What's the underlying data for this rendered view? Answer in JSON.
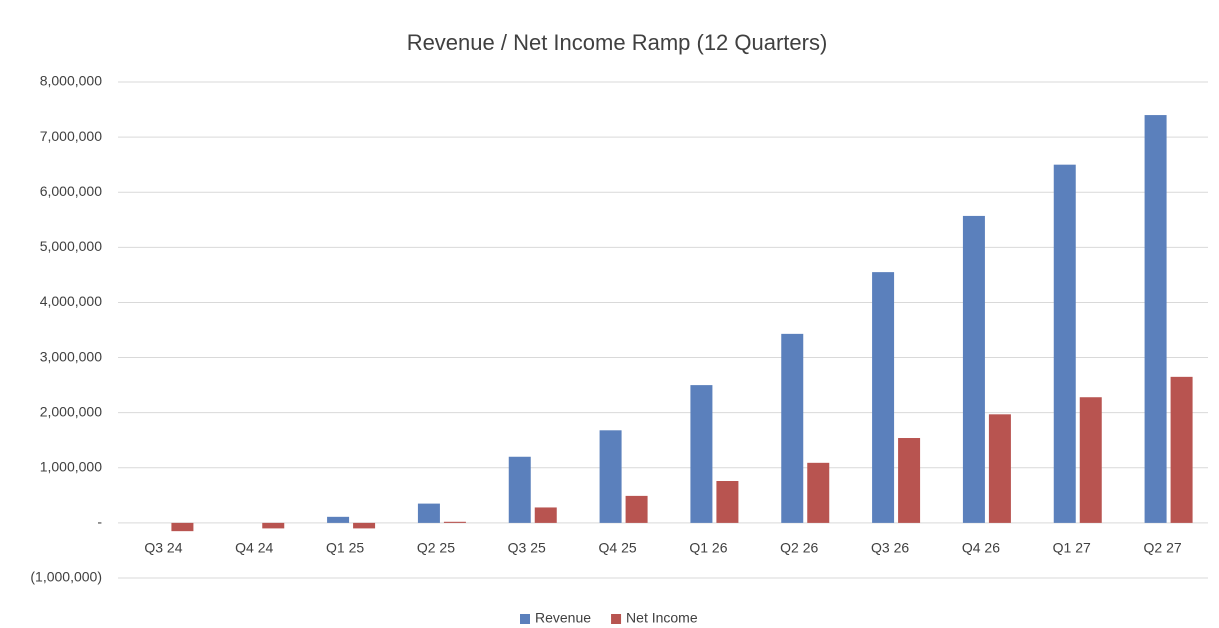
{
  "chart_data": {
    "type": "bar",
    "title": "Revenue / Net Income Ramp (12 Quarters)",
    "categories": [
      "Q3 24",
      "Q4 24",
      "Q1 25",
      "Q2 25",
      "Q3 25",
      "Q4 25",
      "Q1 26",
      "Q2 26",
      "Q3 26",
      "Q4 26",
      "Q1 27",
      "Q2 27"
    ],
    "series": [
      {
        "name": "Revenue",
        "color": "#5b80bc",
        "values": [
          0,
          0,
          110000,
          350000,
          1200000,
          1680000,
          2500000,
          3430000,
          4550000,
          5570000,
          6500000,
          7400000
        ]
      },
      {
        "name": "Net Income",
        "color": "#b85450",
        "values": [
          -150000,
          -100000,
          -100000,
          20000,
          280000,
          490000,
          760000,
          1090000,
          1540000,
          1970000,
          2280000,
          2650000
        ]
      }
    ],
    "ylim": [
      -1000000,
      8000000
    ],
    "yticks": [
      {
        "value": -1000000,
        "label": "(1,000,000)"
      },
      {
        "value": 0,
        "label": "-"
      },
      {
        "value": 1000000,
        "label": "1,000,000"
      },
      {
        "value": 2000000,
        "label": "2,000,000"
      },
      {
        "value": 3000000,
        "label": "3,000,000"
      },
      {
        "value": 4000000,
        "label": "4,000,000"
      },
      {
        "value": 5000000,
        "label": "5,000,000"
      },
      {
        "value": 6000000,
        "label": "6,000,000"
      },
      {
        "value": 7000000,
        "label": "7,000,000"
      },
      {
        "value": 8000000,
        "label": "8,000,000"
      }
    ],
    "grid": true,
    "legend": "bottom"
  }
}
